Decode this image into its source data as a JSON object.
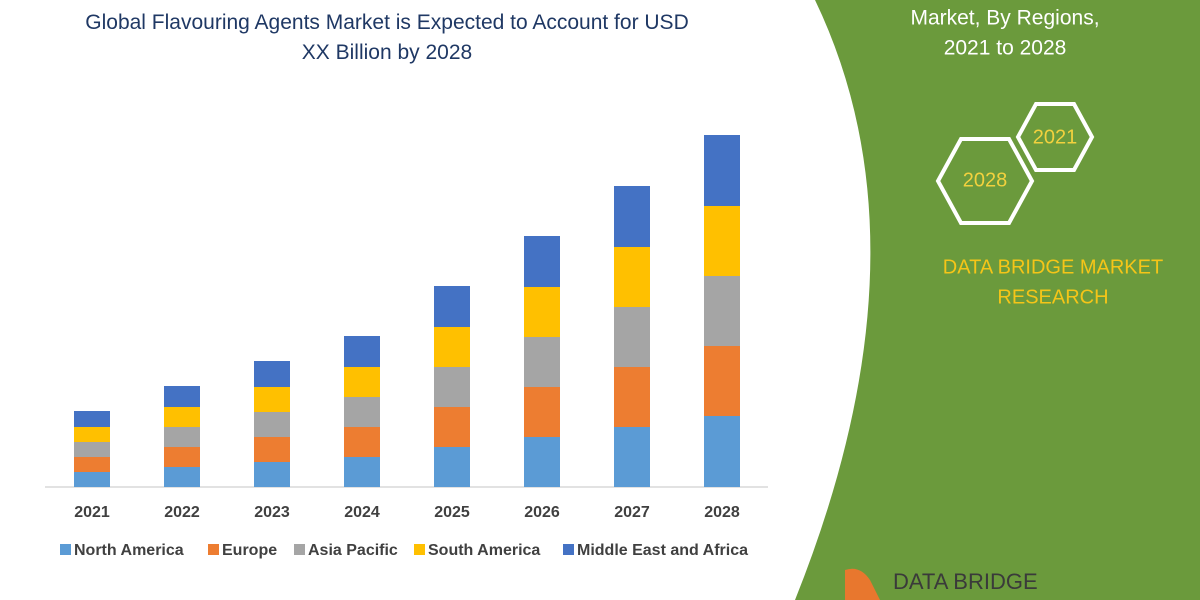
{
  "chart_data": {
    "type": "bar",
    "stacked": true,
    "title": "Global Flavouring Agents Market is Expected to Account for USD XX Billion by 2028",
    "categories": [
      "2021",
      "2022",
      "2023",
      "2024",
      "2025",
      "2026",
      "2027",
      "2028"
    ],
    "series": [
      {
        "name": "North America",
        "color": "#5b9bd5",
        "values": [
          15,
          20,
          25,
          30,
          40,
          50,
          60,
          71
        ]
      },
      {
        "name": "Europe",
        "color": "#ed7d31",
        "values": [
          15,
          20,
          25,
          30,
          40,
          50,
          60,
          70
        ]
      },
      {
        "name": "Asia Pacific",
        "color": "#a5a5a5",
        "values": [
          15,
          20,
          25,
          30,
          40,
          50,
          60,
          70
        ]
      },
      {
        "name": "South America",
        "color": "#ffc000",
        "values": [
          15,
          20,
          25,
          30,
          40,
          50,
          60,
          70
        ]
      },
      {
        "name": "Middle East and Africa",
        "color": "#4472c4",
        "values": [
          16,
          21,
          26,
          31,
          41,
          51,
          61,
          71
        ]
      }
    ],
    "ylim": [
      0,
      360
    ],
    "legend": "bottom"
  },
  "panel": {
    "heading": [
      "Market, By Regions,",
      "2021 to 2028"
    ],
    "hexagons": [
      "2021",
      "2028"
    ],
    "brand": [
      "DATA BRIDGE MARKET",
      "RESEARCH"
    ],
    "logo": "DATA BRIDGE"
  }
}
